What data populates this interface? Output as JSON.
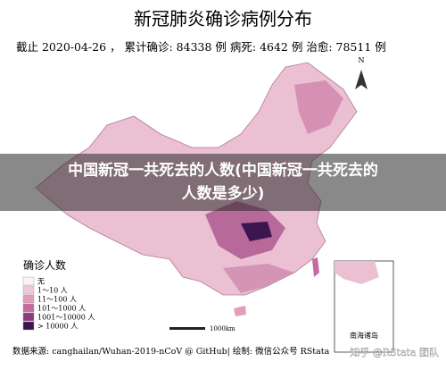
{
  "header": {
    "title": "新冠肺炎确诊病例分布",
    "subtitle": "截止 2020-04-26 ， 累计确诊: 84338 例   病死: 4642 例   治愈: 78511 例"
  },
  "overlay": {
    "text": "中国新冠一共死去的人数(中国新冠一共死去的人数是多少)"
  },
  "map": {
    "north": "N",
    "scale": "1000km",
    "inset": "南海诸岛"
  },
  "legend": {
    "title": "确诊人数",
    "items": [
      {
        "label": "无",
        "color": "#fdf1f4"
      },
      {
        "label": "1～10 人",
        "color": "#f0c8d6"
      },
      {
        "label": "11～100 人",
        "color": "#e39cbc"
      },
      {
        "label": "101～1000 人",
        "color": "#c66aa0"
      },
      {
        "label": "1001～10000 人",
        "color": "#8e3a7e"
      },
      {
        "label": "> 10000 人",
        "color": "#3d1550"
      }
    ]
  },
  "footer": {
    "source": "数据来源: canghailan/Wuhan-2019-nCoV @ GitHub| 绘制: 微信公众号 RStata",
    "watermark": "知乎 @RStata 团队"
  }
}
